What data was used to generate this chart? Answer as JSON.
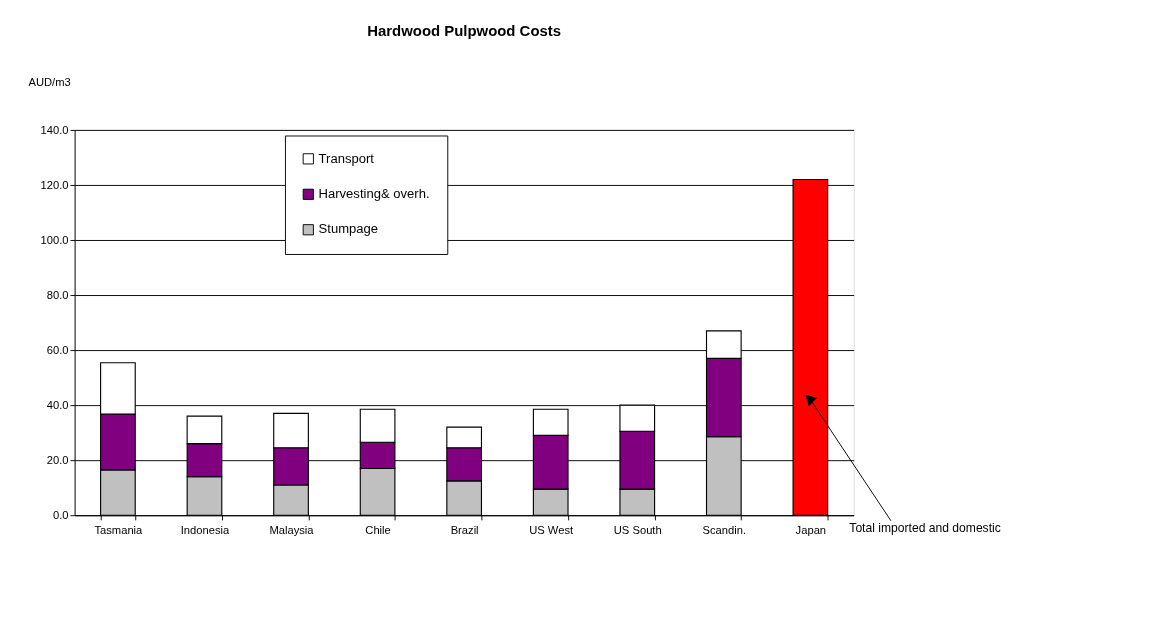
{
  "chart_data": {
    "type": "bar",
    "title": "Hardwood Pulpwood Costs",
    "ylabel": "AUD/m3",
    "categories": [
      "Tasmania",
      "Indonesia",
      "Malaysia",
      "Chile",
      "Brazil",
      "US West",
      "US South",
      "Scandin.",
      "Japan"
    ],
    "stacked": true,
    "series": [
      {
        "name": "Stumpage",
        "color": "#c0c0c0",
        "values": [
          16.5,
          14,
          11,
          17,
          12.5,
          9.5,
          9.5,
          28.5,
          null
        ]
      },
      {
        "name": "Harvesting& overh.",
        "color": "#800080",
        "values": [
          20.3,
          12,
          13.5,
          9.5,
          12,
          19.5,
          21,
          28.5,
          null
        ]
      },
      {
        "name": "Transport",
        "color": "#ffffff",
        "values": [
          18.6,
          10,
          12.5,
          12,
          7.5,
          9.5,
          9.5,
          10,
          null
        ]
      },
      {
        "color": "#ff0000",
        "values": [
          null,
          null,
          null,
          null,
          null,
          null,
          null,
          null,
          122
        ]
      }
    ],
    "ylim": [
      0,
      140
    ],
    "yticks": [
      {
        "value": 0,
        "label": "0.0"
      },
      {
        "value": 20,
        "label": "20.0"
      },
      {
        "value": 40,
        "label": "40.0"
      },
      {
        "value": 60,
        "label": "60.0"
      },
      {
        "value": 80,
        "label": "80.0"
      },
      {
        "value": 100,
        "label": "100.0"
      },
      {
        "value": 120,
        "label": "120.0"
      },
      {
        "value": 140,
        "label": "140.0"
      }
    ],
    "grid": "y",
    "legend": "top",
    "annotations": [
      {
        "text": "Total imported and domestic",
        "x": "Japan",
        "y": 42
      }
    ]
  }
}
